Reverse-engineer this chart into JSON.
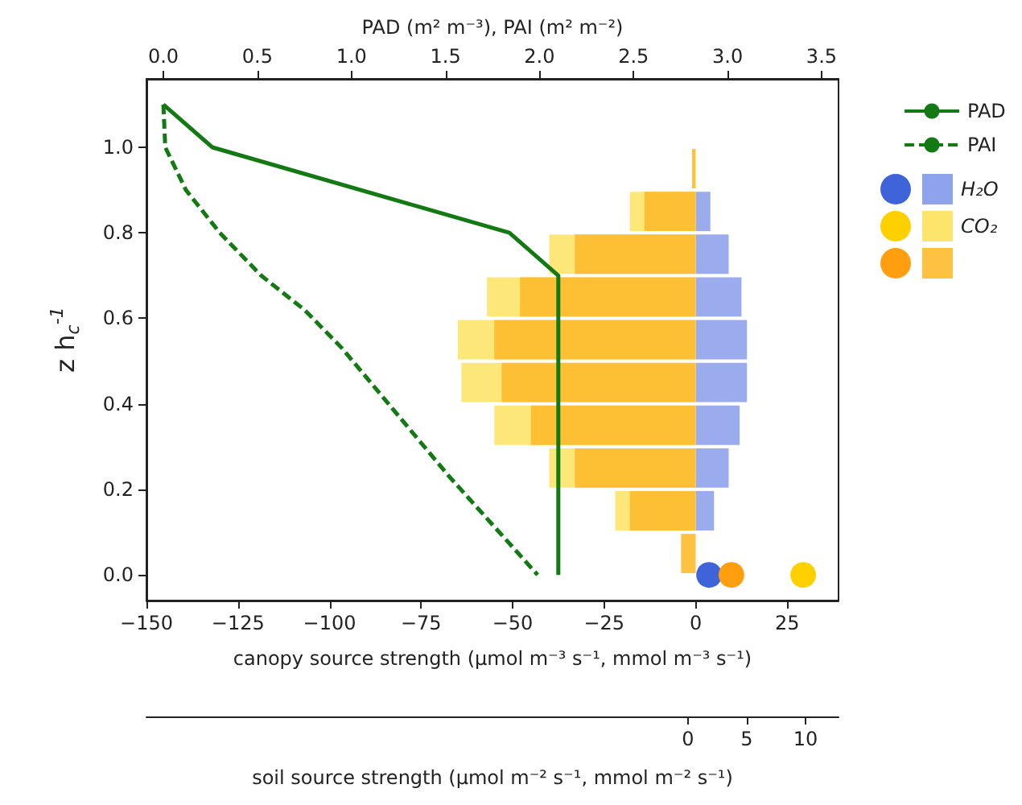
{
  "chart_data": [
    {
      "type": "bar",
      "orientation": "horizontal",
      "xlabel": "canopy source strength (μmol m⁻³ s⁻¹, mmol m⁻³ s⁻¹)",
      "x2label": "PAD (m² m⁻³), PAI (m² m⁻²)",
      "ylabel": "z h$_{c}$$^{-1}$",
      "x": [
        0.05,
        0.15,
        0.25,
        0.35,
        0.45,
        0.55,
        0.65,
        0.75,
        0.85,
        0.95
      ],
      "xlim": [
        -150,
        39
      ],
      "xticks": [
        {
          "value": -150,
          "label": "−150"
        },
        {
          "value": -125,
          "label": "−125"
        },
        {
          "value": -100,
          "label": "−100"
        },
        {
          "value": -75,
          "label": "−75"
        },
        {
          "value": -50,
          "label": "−50"
        },
        {
          "value": -25,
          "label": "−25"
        },
        0,
        25
      ],
      "x2lim": [
        -0.09,
        3.59
      ],
      "x2ticks": [
        {
          "value": 0,
          "label": "0.0"
        },
        0.5,
        {
          "value": 1,
          "label": "1.0"
        },
        1.5,
        {
          "value": 2,
          "label": "2.0"
        },
        2.5,
        {
          "value": 3,
          "label": "3.0"
        },
        3.5
      ],
      "ylim": [
        -0.06,
        1.16
      ],
      "yticks": [
        {
          "value": 0,
          "label": "0.0"
        },
        0.2,
        0.4,
        0.6,
        0.8,
        {
          "value": 1,
          "label": "1.0"
        }
      ],
      "legend": "right",
      "series": [
        {
          "type": "line",
          "name": "PAD",
          "color": "#137a13",
          "axis": "x2",
          "line_style": "solid",
          "marker": "none",
          "x": [
            1.1,
            1.0,
            0.8,
            0.7,
            0
          ],
          "values": [
            0,
            0.26,
            1.84,
            2.1,
            2.1
          ]
        },
        {
          "type": "line",
          "name": "PAI",
          "color": "#137a13",
          "axis": "x2",
          "line_style": "dashed",
          "marker": "none",
          "x": [
            1.1,
            1.0,
            0.9,
            0.8,
            0.7,
            0.62,
            0.53,
            0.23,
            0
          ],
          "values": [
            0,
            0.01,
            0.12,
            0.3,
            0.52,
            0.75,
            0.95,
            1.52,
            1.99
          ]
        },
        {
          "name": "H₂O",
          "color": "#8fa3ec",
          "values": [
            null,
            5,
            9,
            12,
            14,
            14,
            12.5,
            9,
            4,
            null
          ]
        },
        {
          "name": "CO₂",
          "color": "#fde46a",
          "values": [
            null,
            -22,
            -40,
            -55,
            -64,
            -65,
            -57,
            -40,
            -18,
            null
          ]
        },
        {
          "color": "#fdbb2d",
          "values": [
            -4,
            -18,
            -33,
            -45,
            -53,
            -55,
            -48,
            -33,
            -14,
            -1
          ]
        }
      ]
    },
    {
      "type": "scatter",
      "tick_labels": "x",
      "marker": "circle",
      "xlabel": "soil source strength (μmol m⁻² s⁻¹, mmol m⁻² s⁻¹)",
      "xlim": [
        -46,
        12.8
      ],
      "xticks": [
        0,
        5,
        10
      ],
      "ylim": [
        -0.06,
        1.16
      ],
      "series": [
        {
          "color": "#3f63d8",
          "x": [
            1.8
          ],
          "values": [
            0
          ]
        },
        {
          "color": "#ffd000",
          "x": [
            9.8
          ],
          "values": [
            0
          ]
        },
        {
          "color": "#ff9f10",
          "x": [
            3.7
          ],
          "values": [
            0
          ]
        }
      ]
    }
  ]
}
